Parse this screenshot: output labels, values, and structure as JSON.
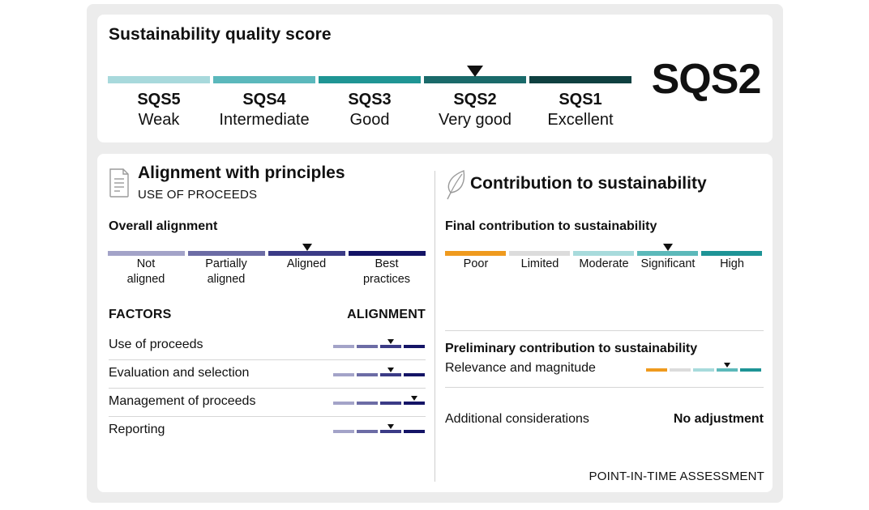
{
  "header": {
    "title": "Sustainability quality score",
    "score": "SQS2",
    "scale": [
      {
        "code": "SQS5",
        "label": "Weak",
        "color": "#a8d9dc"
      },
      {
        "code": "SQS4",
        "label": "Intermediate",
        "color": "#5bb8bc"
      },
      {
        "code": "SQS3",
        "label": "Good",
        "color": "#1f9594"
      },
      {
        "code": "SQS2",
        "label": "Very good",
        "color": "#1a6a6a"
      },
      {
        "code": "SQS1",
        "label": "Excellent",
        "color": "#0f4040"
      }
    ],
    "selected_index": 3
  },
  "alignment": {
    "title": "Alignment with principles",
    "subtitle": "USE OF PROCEEDS",
    "icon": "document-icon",
    "overall_title": "Overall alignment",
    "scale": [
      {
        "label1": "Not",
        "label2": "aligned",
        "color": "#a3a3c8"
      },
      {
        "label1": "Partially",
        "label2": "aligned",
        "color": "#6c6ca5"
      },
      {
        "label1": "Aligned",
        "label2": "",
        "color": "#3b3b86"
      },
      {
        "label1": "Best",
        "label2": "practices",
        "color": "#141466"
      }
    ],
    "selected_index": 2,
    "factors_header": "FACTORS",
    "alignment_header": "ALIGNMENT",
    "factors": [
      {
        "label": "Use of proceeds",
        "selected_index": 2
      },
      {
        "label": "Evaluation and selection",
        "selected_index": 2
      },
      {
        "label": "Management of proceeds",
        "selected_index": 3
      },
      {
        "label": "Reporting",
        "selected_index": 2
      }
    ]
  },
  "contribution": {
    "title": "Contribution to sustainability",
    "icon": "leaf-icon",
    "final_title": "Final contribution to sustainability",
    "scale": [
      {
        "label": "Poor",
        "color": "#ef9a1e"
      },
      {
        "label": "Limited",
        "color": "#dcdcdc"
      },
      {
        "label": "Moderate",
        "color": "#a8dbdc"
      },
      {
        "label": "Significant",
        "color": "#5cb9ba"
      },
      {
        "label": "High",
        "color": "#1e9496"
      }
    ],
    "selected_index": 3,
    "preliminary_title": "Preliminary contribution to sustainability",
    "relevance_label": "Relevance and magnitude",
    "relevance_selected_index": 3,
    "additional_label": "Additional considerations",
    "additional_value": "No adjustment",
    "footer": "POINT-IN-TIME ASSESSMENT"
  }
}
